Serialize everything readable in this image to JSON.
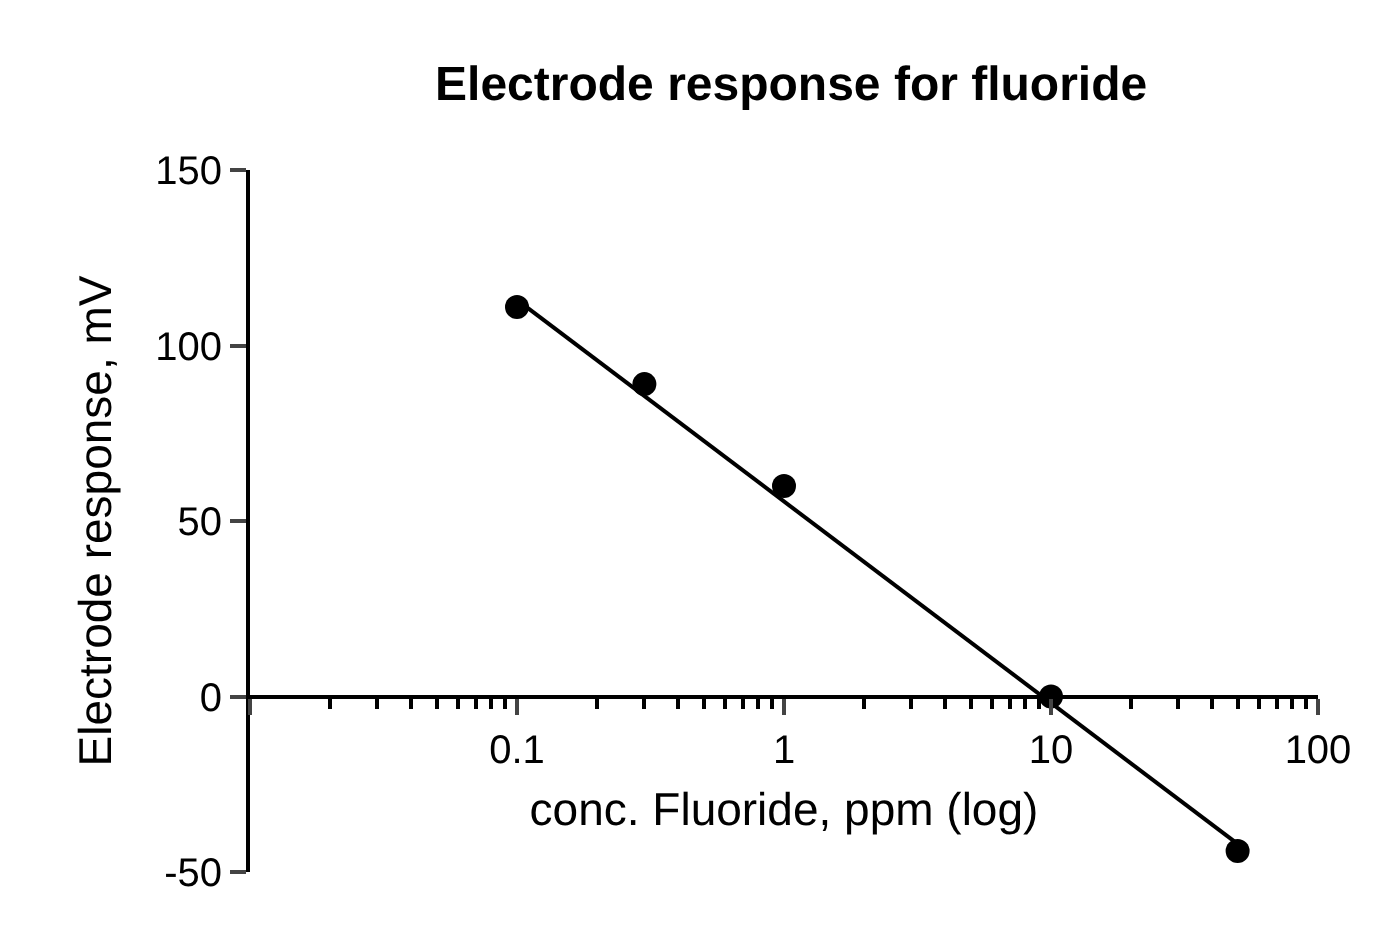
{
  "chart_data": {
    "type": "scatter",
    "title": "Electrode response for fluoride",
    "xlabel": "conc. Fluoride, ppm (log)",
    "ylabel": "Electrode response, mV",
    "log": "x",
    "xlim": [
      0.01,
      100
    ],
    "xticks": [
      {
        "value": 0.01,
        "label": null
      },
      0.1,
      1,
      10,
      100
    ],
    "ylim": [
      -50,
      150
    ],
    "yticks": [
      -50,
      0,
      50,
      100,
      150
    ],
    "legend": false,
    "series": [
      {
        "color": "#000000",
        "marker": "circle",
        "x": [
          0.1,
          0.3,
          1,
          10,
          50
        ],
        "values": [
          111,
          89,
          60,
          0,
          -44
        ]
      },
      {
        "type": "line",
        "color": "#000000",
        "line_style": "solid",
        "marker": "none",
        "x": [
          0.1,
          50
        ],
        "values": [
          113,
          -42
        ]
      }
    ]
  }
}
